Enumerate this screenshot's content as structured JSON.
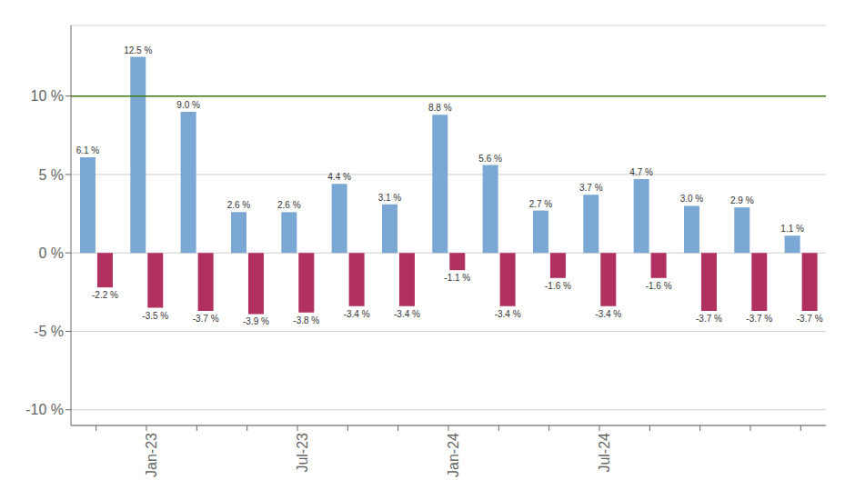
{
  "chart_data": {
    "type": "bar",
    "categories": [
      null,
      "Jan-23",
      null,
      null,
      "Jul-23",
      null,
      null,
      "Jan-24",
      null,
      null,
      "Jul-24",
      null,
      null,
      null,
      null
    ],
    "series": [
      {
        "color": "#7ba7d4",
        "values": [
          6.1,
          12.5,
          9.0,
          2.6,
          2.6,
          4.4,
          3.1,
          8.8,
          5.6,
          2.7,
          3.7,
          4.7,
          3.0,
          2.9,
          1.1
        ],
        "value_labels": [
          "6.1 %",
          "12.5 %",
          "9.0 %",
          "2.6 %",
          "2.6 %",
          "4.4 %",
          "3.1 %",
          "8.8 %",
          "5.6 %",
          "2.7 %",
          "3.7 %",
          "4.7 %",
          "3.0 %",
          "2.9 %",
          "1.1 %"
        ]
      },
      {
        "color": "#b03060",
        "values": [
          -2.2,
          -3.5,
          -3.7,
          -3.9,
          -3.8,
          -3.4,
          -3.4,
          -1.1,
          -3.4,
          -1.6,
          -3.4,
          -1.6,
          -3.7,
          -3.7,
          -3.7
        ],
        "value_labels": [
          "-2.2 %",
          "-3.5 %",
          "-3.7 %",
          "-3.9 %",
          "-3.8 %",
          "-3.4 %",
          "-3.4 %",
          "-1.1 %",
          "-3.4 %",
          "-1.6 %",
          "-3.4 %",
          "-1.6 %",
          "-3.7 %",
          "-3.7 %",
          "-3.7 %"
        ]
      }
    ],
    "ylim": [
      -11,
      14.5
    ],
    "yticks": [
      {
        "value": -10,
        "label": "-10 %"
      },
      {
        "value": -5,
        "label": "-5 %"
      },
      {
        "value": 0,
        "label": "0 %"
      },
      {
        "value": 5,
        "label": "5 %"
      },
      {
        "value": 10,
        "label": "10 %"
      }
    ],
    "hline": {
      "value": 10,
      "color": "#3a7a10"
    },
    "grid": true,
    "data_labels": true
  }
}
